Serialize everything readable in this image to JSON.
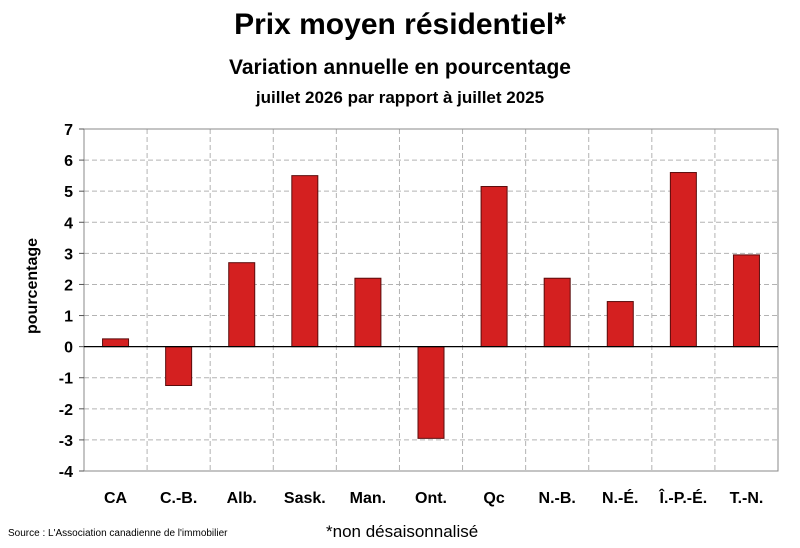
{
  "header": {
    "title": "Prix moyen résidentiel*",
    "subtitle": "Variation annuelle en pourcentage",
    "period": "juillet 2026 par rapport à juillet 2025"
  },
  "footer": {
    "source": "Source : L'Association canadienne de l'immobilier",
    "note": "*non désaisonnalisé"
  },
  "colors": {
    "bar": "#d42020",
    "bar_border": "#5a0b0b",
    "grid": "#b3b3b3"
  },
  "chart_data": {
    "type": "bar",
    "categories": [
      "CA",
      "C.-B.",
      "Alb.",
      "Sask.",
      "Man.",
      "Ont.",
      "Qc",
      "N.-B.",
      "N.-É.",
      "Î.-P.-É.",
      "T.-N."
    ],
    "values": [
      0.25,
      -1.25,
      2.7,
      5.5,
      2.2,
      -2.95,
      5.15,
      2.2,
      1.45,
      5.6,
      2.95
    ],
    "title": "Prix moyen résidentiel*",
    "xlabel": "",
    "ylabel": "pourcentage",
    "ylim": [
      -4,
      7
    ],
    "yticks": [
      -4,
      -3,
      -2,
      -1,
      0,
      1,
      2,
      3,
      4,
      5,
      6,
      7
    ],
    "grid": true
  }
}
